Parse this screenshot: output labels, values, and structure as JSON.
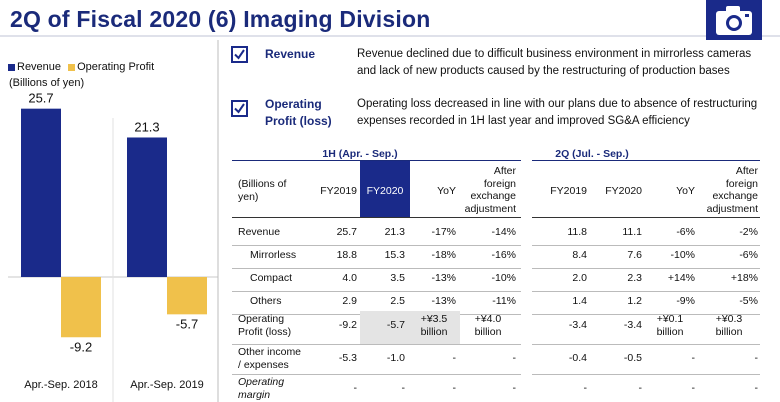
{
  "page": {
    "title": "2Q of Fiscal 2020 (6) Imaging Division",
    "icon": "camera-icon"
  },
  "legend": {
    "revenue": "Revenue",
    "operating_profit": "Operating Profit",
    "unit": "(Billions of yen)"
  },
  "chart_data": {
    "type": "bar",
    "categories": [
      "Apr.-Sep. 2018",
      "Apr.-Sep. 2019"
    ],
    "series": [
      {
        "name": "Revenue",
        "values": [
          25.7,
          21.3
        ],
        "color": "#1a2a8a",
        "labels": [
          "25.7",
          "21.3"
        ]
      },
      {
        "name": "Operating Profit",
        "values": [
          -9.2,
          -5.7
        ],
        "color": "#f0c14b",
        "labels": [
          "-9.2",
          "-5.7"
        ]
      }
    ],
    "title": "",
    "xlabel": "",
    "ylabel": "(Billions of yen)"
  },
  "bullets": [
    {
      "head": "Revenue",
      "text_lines": [
        "Revenue declined due to difficult business environment in mirrorless cameras",
        "and lack of new products caused by the restructuring of production bases"
      ]
    },
    {
      "head_lines": [
        "Operating",
        "Profit (loss)"
      ],
      "text_lines": [
        "Operating loss decreased in line with our plans due to absence of restructuring",
        "expenses recorded in 1H last year and improved SG&A efficiency"
      ]
    }
  ],
  "table": {
    "group1": "1H (Apr. - Sep.)",
    "group2": "2Q (Jul. - Sep.)",
    "unit_header": [
      "(Billions of",
      "yen)"
    ],
    "col_fy2019": "FY2019",
    "col_fy2020": "FY2020",
    "col_yoy": "YoY",
    "col_after": [
      "After",
      "foreign",
      "exchange",
      "adjustment"
    ],
    "rows": [
      {
        "label": [
          "Revenue"
        ],
        "h1": [
          "25.7",
          "21.3",
          "-17%",
          "-14%"
        ],
        "q2": [
          "11.8",
          "11.1",
          "-6%",
          "-2%"
        ]
      },
      {
        "label": [
          "Mirrorless"
        ],
        "indent": true,
        "h1": [
          "18.8",
          "15.3",
          "-18%",
          "-16%"
        ],
        "q2": [
          "8.4",
          "7.6",
          "-10%",
          "-6%"
        ]
      },
      {
        "label": [
          "Compact"
        ],
        "indent": true,
        "h1": [
          "4.0",
          "3.5",
          "-13%",
          "-10%"
        ],
        "q2": [
          "2.0",
          "2.3",
          "+14%",
          "+18%"
        ]
      },
      {
        "label": [
          "Others"
        ],
        "indent": true,
        "h1": [
          "2.9",
          "2.5",
          "-13%",
          "-11%"
        ],
        "q2": [
          "1.4",
          "1.2",
          "-9%",
          "-5%"
        ]
      },
      {
        "label": [
          "Operating",
          "Profit (loss)"
        ],
        "h1": [
          "-9.2",
          "-5.7",
          "+¥3.5|billion",
          "+¥4.0|billion"
        ],
        "q2": [
          "-3.4",
          "-3.4",
          "+¥0.1|billion",
          "+¥0.3|billion"
        ]
      },
      {
        "label": [
          "Other income",
          "/ expenses"
        ],
        "h1": [
          "-5.3",
          "-1.0",
          "-",
          "-"
        ],
        "q2": [
          "-0.4",
          "-0.5",
          "-",
          "-"
        ]
      },
      {
        "label": [
          "Operating",
          "margin"
        ],
        "italic": true,
        "h1": [
          "-",
          "-",
          "-",
          "-"
        ],
        "q2": [
          "-",
          "-",
          "-",
          "-"
        ]
      }
    ]
  }
}
